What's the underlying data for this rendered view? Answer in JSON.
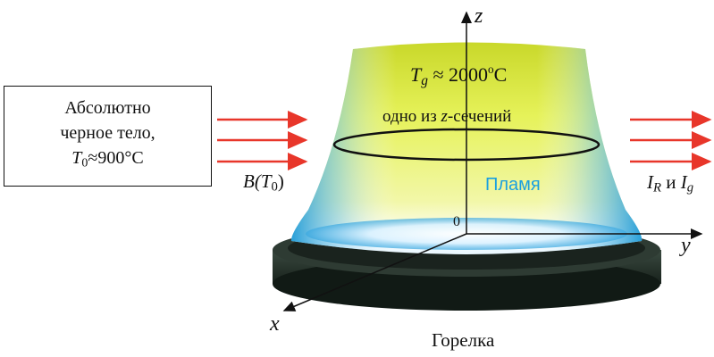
{
  "blackbody": {
    "line1": "Абсолютно",
    "line2": "черное тело,",
    "temp_symbol": "T",
    "temp_sub": "0",
    "temp_value": "≈900°C"
  },
  "source_label": {
    "func": "B(",
    "symbol": "T",
    "sub": "0",
    "close": ")"
  },
  "flame": {
    "temp_symbol": "T",
    "temp_sub": "g",
    "temp_value": " ≈ 2000",
    "temp_deg": "o",
    "temp_unit": "C",
    "section_label_pre": "одно из ",
    "section_label_z": "z",
    "section_label_post": "-сечений",
    "name": "Пламя"
  },
  "output_label": {
    "i1": "I",
    "i1_sub": "R",
    "conj": " и ",
    "i2": "I",
    "i2_sub": "g"
  },
  "axes": {
    "z": "z",
    "y": "y",
    "x": "x",
    "origin": "0"
  },
  "burner_label": "Горелка",
  "colors": {
    "arrow": "#e8362a",
    "flame_blue": "#1aa0e0",
    "flame_yellow": "#e6f25a",
    "burner": "#1f2a24"
  }
}
